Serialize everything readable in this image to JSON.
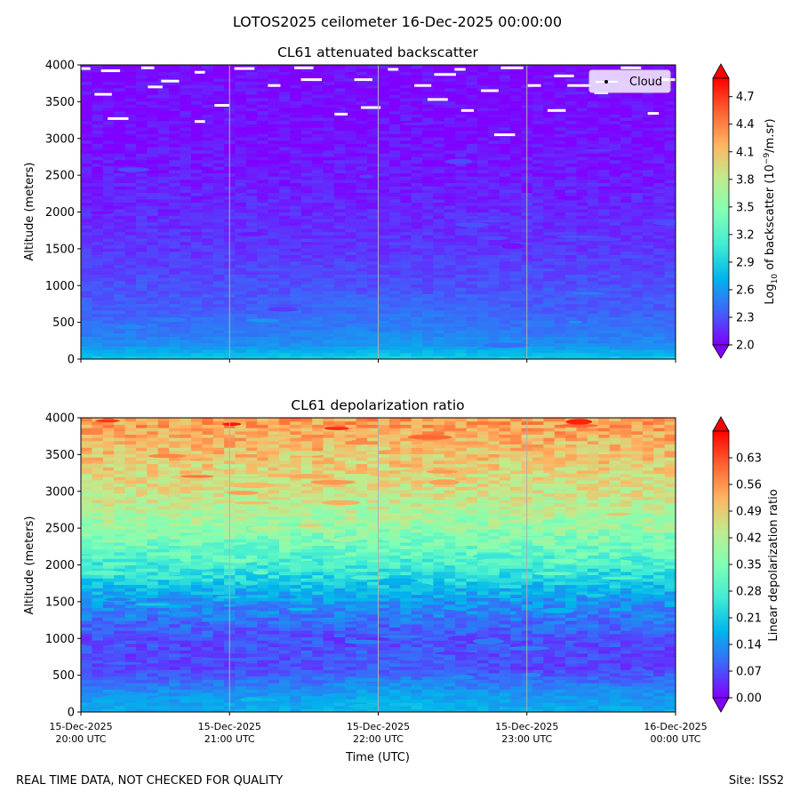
{
  "figure": {
    "suptitle": "LOTOS2025 ceilometer 16-Dec-2025 00:00:00",
    "footer_left": "REAL TIME DATA, NOT CHECKED FOR QUALITY",
    "footer_right": "Site: ISS2"
  },
  "colors": {
    "rainbow": [
      "#8000ff",
      "#4062fa",
      "#00b5eb",
      "#40ecd4",
      "#80ffb4",
      "#c0eb8d",
      "#ffb462",
      "#ff6231",
      "#ff0000"
    ],
    "cloud": "#ffffff",
    "gridline": "#b0b0b0"
  },
  "chart_data": [
    {
      "type": "heatmap",
      "title": "CL61 attenuated backscatter",
      "ylabel": "Altitude (meters)",
      "xlabel": "",
      "ylim": [
        0,
        4000
      ],
      "yticks": [
        "0",
        "500",
        "1000",
        "1500",
        "2000",
        "2500",
        "3000",
        "3500",
        "4000"
      ],
      "x_range_hours_utc": [
        20,
        24
      ],
      "xgrid_hours": [
        21,
        22,
        23
      ],
      "legend": {
        "label": "Cloud",
        "position": "upper-right"
      },
      "colorbar": {
        "label": "Log10 of backscatter (10^-9/m.sr)",
        "label_main": "Log",
        "label_sub": "10",
        "label_mid": " of backscatter (10",
        "label_sup": "−9",
        "label_end": "/m.sr)",
        "range": [
          2.0,
          4.9
        ],
        "ticks": [
          "2.0",
          "2.3",
          "2.6",
          "2.9",
          "3.2",
          "3.5",
          "3.8",
          "4.1",
          "4.4",
          "4.7"
        ]
      },
      "profile": [
        {
          "alt": 0,
          "value": 2.85
        },
        {
          "alt": 200,
          "value": 2.55
        },
        {
          "alt": 400,
          "value": 2.45
        },
        {
          "alt": 700,
          "value": 2.35
        },
        {
          "alt": 1500,
          "value": 2.2
        },
        {
          "alt": 3000,
          "value": 2.05
        },
        {
          "alt": 4000,
          "value": 2.02
        }
      ],
      "cloud_detections": [
        {
          "time": 20.02,
          "alt": 3950
        },
        {
          "time": 20.2,
          "alt": 3920
        },
        {
          "time": 20.45,
          "alt": 3960
        },
        {
          "time": 20.8,
          "alt": 3900
        },
        {
          "time": 20.5,
          "alt": 3700
        },
        {
          "time": 20.15,
          "alt": 3600
        },
        {
          "time": 20.25,
          "alt": 3270
        },
        {
          "time": 20.8,
          "alt": 3230
        },
        {
          "time": 20.6,
          "alt": 3780
        },
        {
          "time": 20.95,
          "alt": 3450
        },
        {
          "time": 21.1,
          "alt": 3950
        },
        {
          "time": 21.3,
          "alt": 3720
        },
        {
          "time": 21.5,
          "alt": 3960
        },
        {
          "time": 21.55,
          "alt": 3800
        },
        {
          "time": 21.75,
          "alt": 3330
        },
        {
          "time": 21.9,
          "alt": 3800
        },
        {
          "time": 22.1,
          "alt": 3940
        },
        {
          "time": 22.3,
          "alt": 3720
        },
        {
          "time": 22.4,
          "alt": 3530
        },
        {
          "time": 22.45,
          "alt": 3870
        },
        {
          "time": 22.55,
          "alt": 3940
        },
        {
          "time": 22.6,
          "alt": 3380
        },
        {
          "time": 22.85,
          "alt": 3050
        },
        {
          "time": 22.75,
          "alt": 3650
        },
        {
          "time": 22.9,
          "alt": 3960
        },
        {
          "time": 23.05,
          "alt": 3720
        },
        {
          "time": 23.2,
          "alt": 3380
        },
        {
          "time": 23.25,
          "alt": 3850
        },
        {
          "time": 23.5,
          "alt": 3620
        },
        {
          "time": 23.7,
          "alt": 3960
        },
        {
          "time": 23.85,
          "alt": 3340
        },
        {
          "time": 23.95,
          "alt": 3800
        },
        {
          "time": 21.95,
          "alt": 3420
        },
        {
          "time": 23.35,
          "alt": 3720
        }
      ]
    },
    {
      "type": "heatmap",
      "title": "CL61 depolarization ratio",
      "ylabel": "Altitude (meters)",
      "xlabel": "Time (UTC)",
      "ylim": [
        0,
        4000
      ],
      "yticks": [
        "0",
        "500",
        "1000",
        "1500",
        "2000",
        "2500",
        "3000",
        "3500",
        "4000"
      ],
      "x_range_hours_utc": [
        20,
        24
      ],
      "xgrid_hours": [
        21,
        22,
        23
      ],
      "xticks": [
        {
          "line1": "15-Dec-2025",
          "line2": "20:00 UTC"
        },
        {
          "line1": "15-Dec-2025",
          "line2": "21:00 UTC"
        },
        {
          "line1": "15-Dec-2025",
          "line2": "22:00 UTC"
        },
        {
          "line1": "15-Dec-2025",
          "line2": "23:00 UTC"
        },
        {
          "line1": "16-Dec-2025",
          "line2": "00:00 UTC"
        }
      ],
      "colorbar": {
        "label": "Linear depolarization ratio",
        "range": [
          0.0,
          0.7
        ],
        "ticks": [
          "0.00",
          "0.07",
          "0.14",
          "0.21",
          "0.28",
          "0.35",
          "0.42",
          "0.49",
          "0.56",
          "0.63"
        ]
      },
      "profile": [
        {
          "alt": 0,
          "value": 0.17
        },
        {
          "alt": 300,
          "value": 0.13
        },
        {
          "alt": 600,
          "value": 0.06
        },
        {
          "alt": 1000,
          "value": 0.07
        },
        {
          "alt": 1500,
          "value": 0.14
        },
        {
          "alt": 2000,
          "value": 0.27
        },
        {
          "alt": 2500,
          "value": 0.38
        },
        {
          "alt": 3000,
          "value": 0.45
        },
        {
          "alt": 3500,
          "value": 0.5
        },
        {
          "alt": 4000,
          "value": 0.55
        }
      ]
    }
  ]
}
